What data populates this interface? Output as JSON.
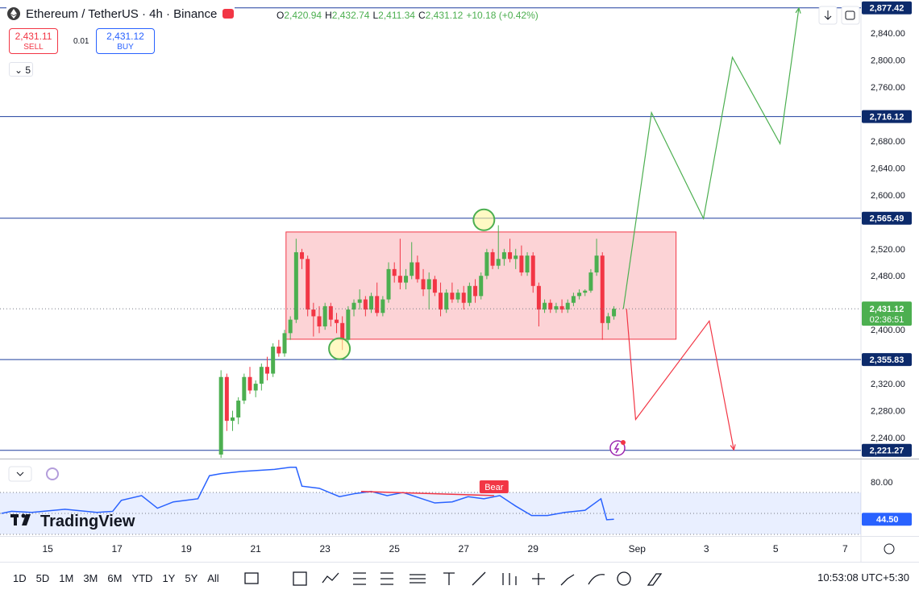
{
  "header": {
    "symbol": "Ethereum / TetherUS · 4h · Binance",
    "ohlc": [
      [
        "O",
        "2,420.94"
      ],
      [
        "H",
        "2,432.74"
      ],
      [
        "L",
        "2,411.34"
      ],
      [
        "C",
        "2,431.12"
      ]
    ],
    "change": "+10.18 (+0.42%)"
  },
  "trade": {
    "sell_price": "2,431.11",
    "sell": "SELL",
    "spread": "0.01",
    "buy_price": "2,431.12",
    "buy": "BUY"
  },
  "indicator_count": "5",
  "logo": "TradingView",
  "toolbar": {
    "ranges": [
      "1D",
      "5D",
      "1M",
      "3M",
      "6M",
      "YTD",
      "1Y",
      "5Y",
      "All"
    ],
    "clock": "10:53:08 UTC+5:30"
  },
  "chart_data": [
    {
      "type": "candlestick",
      "up_color": "#4caf50",
      "down_color": "#f23645",
      "xlim": [
        -33,
        563
      ],
      "ylim": [
        2209,
        2889
      ],
      "grid": false,
      "xticks": [
        {
          "value": 0,
          "label": "15"
        },
        {
          "value": 48,
          "label": "17"
        },
        {
          "value": 96,
          "label": "19"
        },
        {
          "value": 144,
          "label": "21"
        },
        {
          "value": 192,
          "label": "23"
        },
        {
          "value": 240,
          "label": "25"
        },
        {
          "value": 288,
          "label": "27"
        },
        {
          "value": 336,
          "label": "29"
        },
        {
          "value": 408,
          "label": "Sep"
        },
        {
          "value": 456,
          "label": "3"
        },
        {
          "value": 504,
          "label": "5"
        },
        {
          "value": 552,
          "label": "7"
        }
      ],
      "yticks": [
        {
          "value": 2840,
          "label": "2,840.00"
        },
        {
          "value": 2800,
          "label": "2,800.00"
        },
        {
          "value": 2760,
          "label": "2,760.00"
        },
        {
          "value": 2680,
          "label": "2,680.00"
        },
        {
          "value": 2640,
          "label": "2,640.00"
        },
        {
          "value": 2600,
          "label": "2,600.00"
        },
        {
          "value": 2520,
          "label": "2,520.00"
        },
        {
          "value": 2480,
          "label": "2,480.00"
        },
        {
          "value": 2400,
          "label": "2,400.00"
        },
        {
          "value": 2320,
          "label": "2,320.00"
        },
        {
          "value": 2280,
          "label": "2,280.00"
        },
        {
          "value": 2240,
          "label": "2,240.00"
        }
      ],
      "x": [
        120,
        124,
        128,
        132,
        136,
        140,
        144,
        148,
        152,
        156,
        160,
        164,
        168,
        172,
        176,
        180,
        184,
        188,
        192,
        196,
        200,
        204,
        208,
        212,
        216,
        220,
        224,
        228,
        232,
        236,
        240,
        244,
        248,
        252,
        256,
        260,
        264,
        268,
        272,
        276,
        280,
        284,
        288,
        292,
        296,
        300,
        304,
        308,
        312,
        316,
        320,
        324,
        328,
        332,
        336,
        340,
        344,
        348,
        352,
        356,
        360,
        364,
        368,
        372,
        376,
        380,
        384,
        388,
        392
      ],
      "ohlc": [
        [
          2215,
          2340,
          2210,
          2330
        ],
        [
          2330,
          2335,
          2250,
          2265
        ],
        [
          2265,
          2280,
          2250,
          2270
        ],
        [
          2270,
          2300,
          2260,
          2295
        ],
        [
          2295,
          2335,
          2290,
          2330
        ],
        [
          2330,
          2345,
          2305,
          2310
        ],
        [
          2310,
          2325,
          2300,
          2320
        ],
        [
          2320,
          2350,
          2310,
          2345
        ],
        [
          2345,
          2360,
          2325,
          2335
        ],
        [
          2335,
          2380,
          2330,
          2375
        ],
        [
          2375,
          2385,
          2360,
          2365
        ],
        [
          2365,
          2400,
          2360,
          2395
        ],
        [
          2395,
          2420,
          2385,
          2415
        ],
        [
          2415,
          2535,
          2410,
          2515
        ],
        [
          2515,
          2520,
          2490,
          2505
        ],
        [
          2505,
          2510,
          2420,
          2430
        ],
        [
          2430,
          2440,
          2390,
          2420
        ],
        [
          2420,
          2435,
          2395,
          2405
        ],
        [
          2405,
          2440,
          2400,
          2435
        ],
        [
          2435,
          2440,
          2405,
          2415
        ],
        [
          2415,
          2425,
          2395,
          2410
        ],
        [
          2410,
          2420,
          2370,
          2385
        ],
        [
          2385,
          2435,
          2380,
          2430
        ],
        [
          2430,
          2445,
          2420,
          2440
        ],
        [
          2440,
          2460,
          2430,
          2445
        ],
        [
          2445,
          2450,
          2420,
          2430
        ],
        [
          2430,
          2455,
          2425,
          2450
        ],
        [
          2450,
          2470,
          2420,
          2425
        ],
        [
          2425,
          2450,
          2420,
          2445
        ],
        [
          2445,
          2500,
          2440,
          2490
        ],
        [
          2490,
          2500,
          2470,
          2480
        ],
        [
          2480,
          2535,
          2460,
          2470
        ],
        [
          2470,
          2490,
          2460,
          2480
        ],
        [
          2480,
          2530,
          2475,
          2500
        ],
        [
          2500,
          2510,
          2470,
          2475
        ],
        [
          2475,
          2490,
          2450,
          2460
        ],
        [
          2460,
          2485,
          2430,
          2475
        ],
        [
          2475,
          2480,
          2450,
          2455
        ],
        [
          2455,
          2470,
          2420,
          2430
        ],
        [
          2430,
          2460,
          2425,
          2455
        ],
        [
          2455,
          2470,
          2440,
          2445
        ],
        [
          2445,
          2460,
          2440,
          2455
        ],
        [
          2455,
          2465,
          2430,
          2440
        ],
        [
          2440,
          2470,
          2435,
          2465
        ],
        [
          2465,
          2475,
          2440,
          2450
        ],
        [
          2450,
          2485,
          2445,
          2480
        ],
        [
          2480,
          2520,
          2475,
          2515
        ],
        [
          2515,
          2520,
          2490,
          2495
        ],
        [
          2495,
          2555,
          2490,
          2505
        ],
        [
          2505,
          2520,
          2495,
          2515
        ],
        [
          2515,
          2535,
          2500,
          2505
        ],
        [
          2505,
          2520,
          2490,
          2510
        ],
        [
          2510,
          2525,
          2480,
          2485
        ],
        [
          2485,
          2515,
          2480,
          2510
        ],
        [
          2510,
          2515,
          2455,
          2465
        ],
        [
          2465,
          2470,
          2405,
          2430
        ],
        [
          2430,
          2445,
          2425,
          2440
        ],
        [
          2440,
          2445,
          2425,
          2430
        ],
        [
          2430,
          2440,
          2425,
          2435
        ],
        [
          2435,
          2445,
          2425,
          2430
        ],
        [
          2430,
          2445,
          2425,
          2440
        ],
        [
          2440,
          2455,
          2435,
          2450
        ],
        [
          2450,
          2460,
          2445,
          2455
        ],
        [
          2455,
          2460,
          2450,
          2458
        ],
        [
          2458,
          2490,
          2455,
          2485
        ],
        [
          2485,
          2535,
          2480,
          2510
        ],
        [
          2510,
          2515,
          2385,
          2410
        ],
        [
          2410,
          2425,
          2400,
          2420
        ],
        [
          2420,
          2435,
          2415,
          2431.12
        ]
      ],
      "current": {
        "label": "2,431.12",
        "countdown": "02:36:51",
        "color": "#4caf50"
      },
      "levels": [
        {
          "value": 2877.42,
          "label": "2,877.42"
        },
        {
          "value": 2716.12,
          "label": "2,716.12"
        },
        {
          "value": 2565.49,
          "label": "2,565.49"
        },
        {
          "value": 2355.83,
          "label": "2,355.83"
        },
        {
          "value": 2221.27,
          "label": "2,221.27"
        }
      ],
      "level_color": "#1e3f9e",
      "rectangle": {
        "x": [
          165,
          435
        ],
        "y": [
          2386,
          2545
        ],
        "color": "#f23645"
      },
      "circles": [
        {
          "x": 202,
          "y": 2372
        },
        {
          "x": 302,
          "y": 2563
        }
      ],
      "paths": [
        {
          "x": [
            398.5,
            418,
            454,
            474,
            507,
            520
          ],
          "values": [
            2431,
            2722,
            2565,
            2804,
            2676,
            2877
          ],
          "color": "#4caf50"
        },
        {
          "x": [
            400.7,
            407,
            458,
            475
          ],
          "values": [
            2431,
            2267,
            2413,
            2222
          ],
          "color": "#f23645"
        }
      ]
    },
    {
      "type": "line",
      "color": "#2962ff",
      "xlim": [
        -33,
        563
      ],
      "ylim": [
        28.5,
        97.7
      ],
      "levels": [
        30,
        50,
        70
      ],
      "yticks": [
        {
          "value": 80,
          "label": "80.00"
        }
      ],
      "last": {
        "value": 44.5,
        "label": "44.50"
      },
      "x": [
        -32,
        -25,
        -11,
        12,
        34,
        45,
        51,
        65,
        76,
        87,
        104,
        112,
        120,
        134,
        157,
        168,
        172,
        176,
        188,
        202,
        213,
        224,
        235,
        246,
        257,
        268,
        280,
        291,
        302,
        313,
        324,
        335,
        346,
        358,
        372,
        383,
        387,
        392
      ],
      "values": [
        50,
        52,
        51,
        54,
        51,
        52,
        62.5,
        67,
        55,
        61,
        64,
        86,
        88,
        90,
        92,
        94,
        94,
        76,
        74,
        66,
        69,
        71,
        67,
        70,
        65,
        60,
        61,
        66,
        64,
        67,
        57,
        48,
        48,
        51,
        53,
        64,
        44,
        44.5
      ],
      "annotation": {
        "text": "Bear",
        "x": [
          217,
          309
        ],
        "values": [
          71,
          67
        ],
        "color": "#f23645"
      }
    }
  ]
}
